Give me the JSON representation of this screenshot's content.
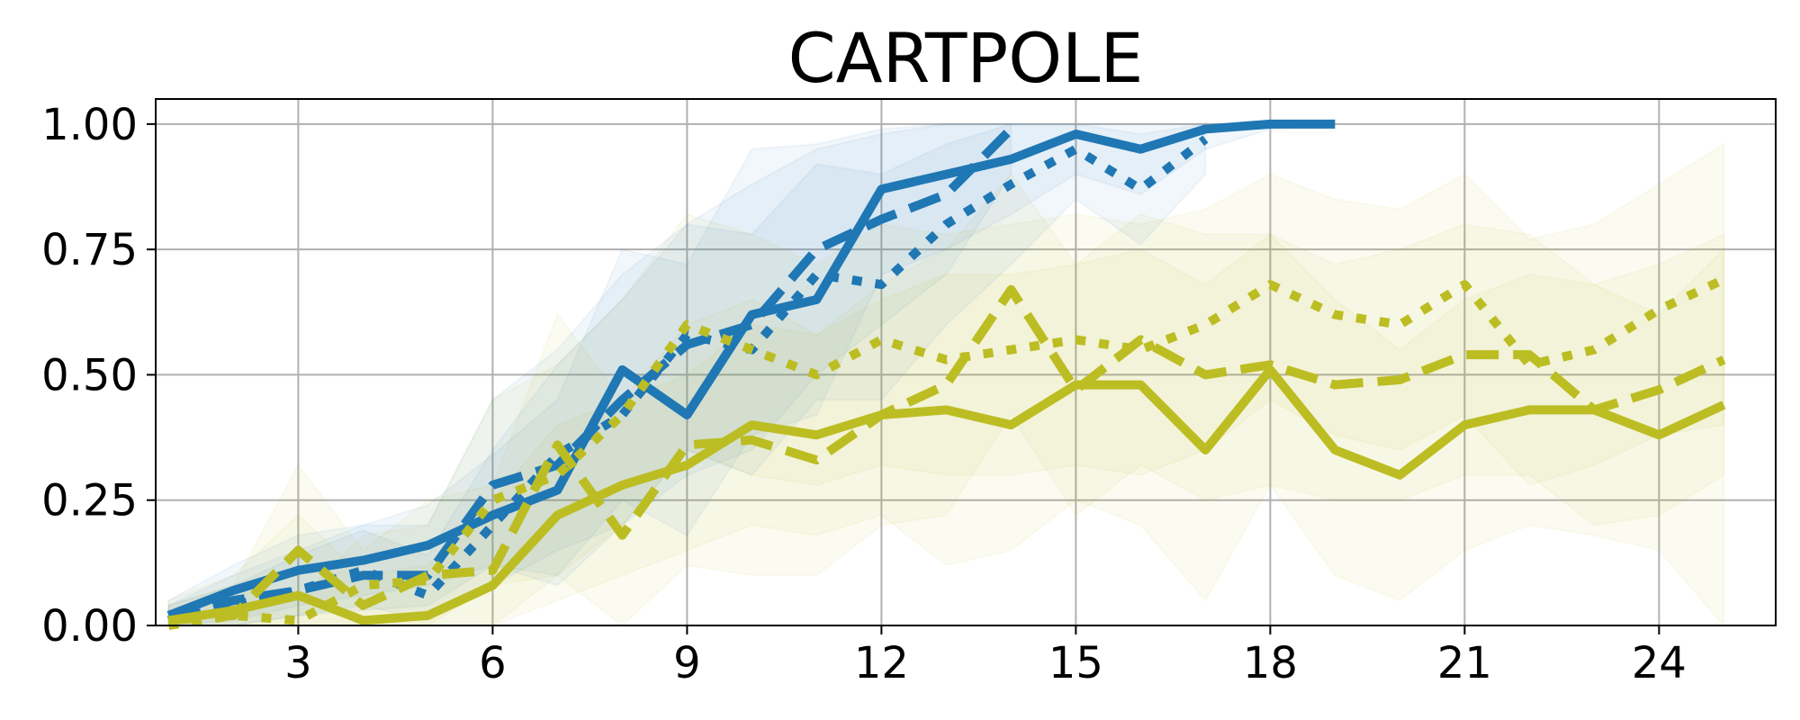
{
  "chart_data": {
    "type": "line",
    "title": "CARTPOLE",
    "xlabel": "",
    "ylabel": "",
    "xlim": [
      0.8,
      25.8
    ],
    "ylim": [
      0,
      1.05
    ],
    "xticks": [
      3,
      6,
      9,
      12,
      15,
      18,
      21,
      24
    ],
    "xtick_labels": [
      "3",
      "6",
      "9",
      "12",
      "15",
      "18",
      "21",
      "24"
    ],
    "yticks": [
      0,
      0.25,
      0.5,
      0.75,
      1.0
    ],
    "ytick_labels": [
      "0.00",
      "0.25",
      "0.50",
      "0.75",
      "1.00"
    ],
    "grid": true,
    "legend": null,
    "colors": {
      "blue": "#1f77b4",
      "olive": "#bcbd22"
    },
    "series": [
      {
        "color": "#1f77b4",
        "dash": "solid",
        "x": [
          1,
          2,
          3,
          4,
          5,
          6,
          7,
          8,
          9,
          10,
          11,
          12,
          13,
          14,
          15,
          16,
          17,
          18,
          19
        ],
        "y": [
          0.02,
          0.07,
          0.11,
          0.13,
          0.16,
          0.22,
          0.27,
          0.51,
          0.42,
          0.62,
          0.65,
          0.87,
          0.9,
          0.93,
          0.98,
          0.95,
          0.99,
          1.0,
          1.0
        ],
        "band_lower": [
          0.0,
          0.01,
          0.04,
          0.06,
          0.08,
          0.12,
          0.1,
          0.25,
          0.18,
          0.38,
          0.42,
          0.7,
          0.75,
          0.82,
          0.9,
          0.86,
          0.95,
          0.99,
          1.0
        ],
        "band_upper": [
          0.05,
          0.12,
          0.18,
          0.2,
          0.24,
          0.34,
          0.45,
          0.75,
          0.72,
          0.95,
          0.96,
          0.99,
          1.0,
          1.0,
          1.0,
          1.0,
          1.0,
          1.0,
          1.0
        ]
      },
      {
        "color": "#1f77b4",
        "dash": "dashed",
        "x": [
          1,
          2,
          3,
          4,
          5,
          6,
          7,
          8,
          9,
          10,
          11,
          12,
          13,
          14
        ],
        "y": [
          0.01,
          0.05,
          0.07,
          0.1,
          0.1,
          0.28,
          0.32,
          0.45,
          0.56,
          0.6,
          0.75,
          0.81,
          0.86,
          0.99
        ],
        "band_lower": [
          0.0,
          0.0,
          0.02,
          0.03,
          0.04,
          0.12,
          0.08,
          0.2,
          0.3,
          0.35,
          0.5,
          0.6,
          0.7,
          0.9
        ],
        "band_upper": [
          0.04,
          0.1,
          0.15,
          0.2,
          0.2,
          0.45,
          0.55,
          0.7,
          0.8,
          0.88,
          0.95,
          0.98,
          1.0,
          1.0
        ]
      },
      {
        "color": "#1f77b4",
        "dash": "dotted",
        "x": [
          1,
          2,
          3,
          4,
          5,
          6,
          7,
          8,
          9,
          10,
          11,
          12,
          13,
          14,
          15,
          16,
          17
        ],
        "y": [
          0.01,
          0.04,
          0.07,
          0.11,
          0.06,
          0.2,
          0.34,
          0.42,
          0.58,
          0.55,
          0.7,
          0.68,
          0.8,
          0.88,
          0.95,
          0.87,
          0.97
        ],
        "band_lower": [
          0.0,
          0.0,
          0.02,
          0.04,
          0.01,
          0.08,
          0.15,
          0.2,
          0.35,
          0.3,
          0.45,
          0.45,
          0.6,
          0.72,
          0.85,
          0.76,
          0.9
        ],
        "band_upper": [
          0.04,
          0.08,
          0.14,
          0.19,
          0.14,
          0.35,
          0.52,
          0.65,
          0.8,
          0.78,
          0.92,
          0.9,
          0.96,
          1.0,
          1.0,
          0.98,
          1.0
        ]
      },
      {
        "color": "#bcbd22",
        "dash": "solid",
        "x": [
          1,
          2,
          3,
          4,
          5,
          6,
          7,
          8,
          9,
          10,
          11,
          12,
          13,
          14,
          15,
          16,
          17,
          18,
          19,
          20,
          21,
          22,
          23,
          24,
          25
        ],
        "y": [
          0.01,
          0.03,
          0.06,
          0.01,
          0.02,
          0.08,
          0.22,
          0.28,
          0.32,
          0.4,
          0.38,
          0.42,
          0.43,
          0.4,
          0.48,
          0.48,
          0.35,
          0.51,
          0.35,
          0.3,
          0.4,
          0.43,
          0.43,
          0.38,
          0.44
        ],
        "band_lower": [
          0.0,
          0.0,
          0.0,
          0.0,
          0.0,
          0.0,
          0.05,
          0.1,
          0.15,
          0.2,
          0.18,
          0.22,
          0.12,
          0.15,
          0.25,
          0.2,
          0.05,
          0.28,
          0.1,
          0.05,
          0.15,
          0.2,
          0.18,
          0.15,
          0.0
        ],
        "band_upper": [
          0.05,
          0.1,
          0.22,
          0.1,
          0.12,
          0.25,
          0.4,
          0.45,
          0.5,
          0.6,
          0.58,
          0.65,
          0.7,
          0.7,
          0.72,
          0.75,
          0.68,
          0.78,
          0.65,
          0.55,
          0.65,
          0.7,
          0.68,
          0.62,
          0.75
        ]
      },
      {
        "color": "#bcbd22",
        "dash": "dashed",
        "x": [
          1,
          2,
          3,
          4,
          5,
          6,
          7,
          8,
          9,
          10,
          11,
          12,
          13,
          14,
          15,
          16,
          17,
          18,
          19,
          20,
          21,
          22,
          23,
          24,
          25
        ],
        "y": [
          0.01,
          0.02,
          0.15,
          0.04,
          0.1,
          0.11,
          0.36,
          0.18,
          0.36,
          0.37,
          0.33,
          0.42,
          0.48,
          0.67,
          0.47,
          0.57,
          0.5,
          0.52,
          0.48,
          0.49,
          0.54,
          0.54,
          0.43,
          0.47,
          0.53
        ],
        "band_lower": [
          0.0,
          0.0,
          0.0,
          0.0,
          0.0,
          0.0,
          0.1,
          0.0,
          0.12,
          0.1,
          0.1,
          0.2,
          0.22,
          0.42,
          0.22,
          0.32,
          0.25,
          0.28,
          0.25,
          0.25,
          0.3,
          0.3,
          0.2,
          0.22,
          0.3
        ],
        "band_upper": [
          0.04,
          0.08,
          0.32,
          0.15,
          0.25,
          0.28,
          0.62,
          0.45,
          0.6,
          0.65,
          0.58,
          0.68,
          0.75,
          0.9,
          0.72,
          0.82,
          0.78,
          0.78,
          0.72,
          0.75,
          0.8,
          0.78,
          0.68,
          0.72,
          0.78
        ]
      },
      {
        "color": "#bcbd22",
        "dash": "dotted",
        "x": [
          1,
          2,
          3,
          4,
          5,
          6,
          7,
          8,
          9,
          10,
          11,
          12,
          13,
          14,
          15,
          16,
          17,
          18,
          19,
          20,
          21,
          22,
          23,
          24,
          25
        ],
        "y": [
          0.0,
          0.02,
          0.01,
          0.08,
          0.09,
          0.25,
          0.3,
          0.42,
          0.6,
          0.55,
          0.5,
          0.57,
          0.53,
          0.55,
          0.57,
          0.55,
          0.6,
          0.68,
          0.62,
          0.6,
          0.68,
          0.52,
          0.55,
          0.63,
          0.69
        ],
        "band_lower": [
          0.0,
          0.0,
          0.0,
          0.0,
          0.0,
          0.08,
          0.1,
          0.2,
          0.35,
          0.3,
          0.28,
          0.32,
          0.3,
          0.3,
          0.32,
          0.3,
          0.35,
          0.45,
          0.38,
          0.35,
          0.42,
          0.28,
          0.32,
          0.38,
          0.4
        ],
        "band_upper": [
          0.03,
          0.07,
          0.05,
          0.18,
          0.2,
          0.45,
          0.52,
          0.65,
          0.82,
          0.78,
          0.72,
          0.8,
          0.78,
          0.8,
          0.82,
          0.8,
          0.83,
          0.9,
          0.85,
          0.83,
          0.9,
          0.77,
          0.8,
          0.88,
          0.96
        ]
      }
    ]
  }
}
